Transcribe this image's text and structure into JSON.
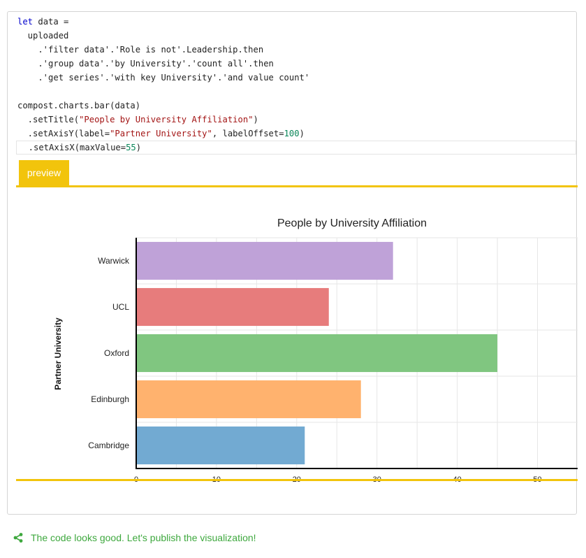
{
  "code": {
    "lines": [
      [
        {
          "t": "let",
          "c": "kw"
        },
        {
          "t": " data ="
        }
      ],
      [
        {
          "t": "  uploaded"
        }
      ],
      [
        {
          "t": "    .'filter data'.'Role is not'.Leadership.then"
        }
      ],
      [
        {
          "t": "    .'group data'.'by University'.'count all'.then"
        }
      ],
      [
        {
          "t": "    .'get series'.'with key University'.'and value count'"
        }
      ],
      [
        {
          "t": ""
        }
      ],
      [
        {
          "t": "compost.charts.bar(data)"
        }
      ],
      [
        {
          "t": "  .setTitle("
        },
        {
          "t": "\"People by University Affiliation\"",
          "c": "str"
        },
        {
          "t": ")"
        }
      ],
      [
        {
          "t": "  .setAxisY(label="
        },
        {
          "t": "\"Partner University\"",
          "c": "str"
        },
        {
          "t": ", labelOffset="
        },
        {
          "t": "100",
          "c": "num"
        },
        {
          "t": ")"
        }
      ],
      [
        {
          "t": "  .setAxisX(maxValue="
        },
        {
          "t": "55",
          "c": "num"
        },
        {
          "t": ")"
        }
      ]
    ],
    "current_line": 9
  },
  "tabs": {
    "preview_label": "preview"
  },
  "status": {
    "message": "The code looks good. Let's publish the visualization!",
    "icon": "share-icon",
    "color": "#3ea83e"
  },
  "chart_data": {
    "type": "bar",
    "orientation": "horizontal",
    "title": "People by University Affiliation",
    "ylabel": "Partner University",
    "xlabel": "",
    "categories": [
      "Warwick",
      "UCL",
      "Oxford",
      "Edinburgh",
      "Cambridge"
    ],
    "values": [
      32,
      24,
      45,
      28,
      21
    ],
    "colors": [
      "#bfa2d8",
      "#e77c7c",
      "#80c680",
      "#ffb26e",
      "#72aad2"
    ],
    "xlim": [
      0,
      55
    ],
    "xticks": [
      0,
      10,
      20,
      30,
      40,
      50
    ],
    "grid": true,
    "legend": "none"
  }
}
